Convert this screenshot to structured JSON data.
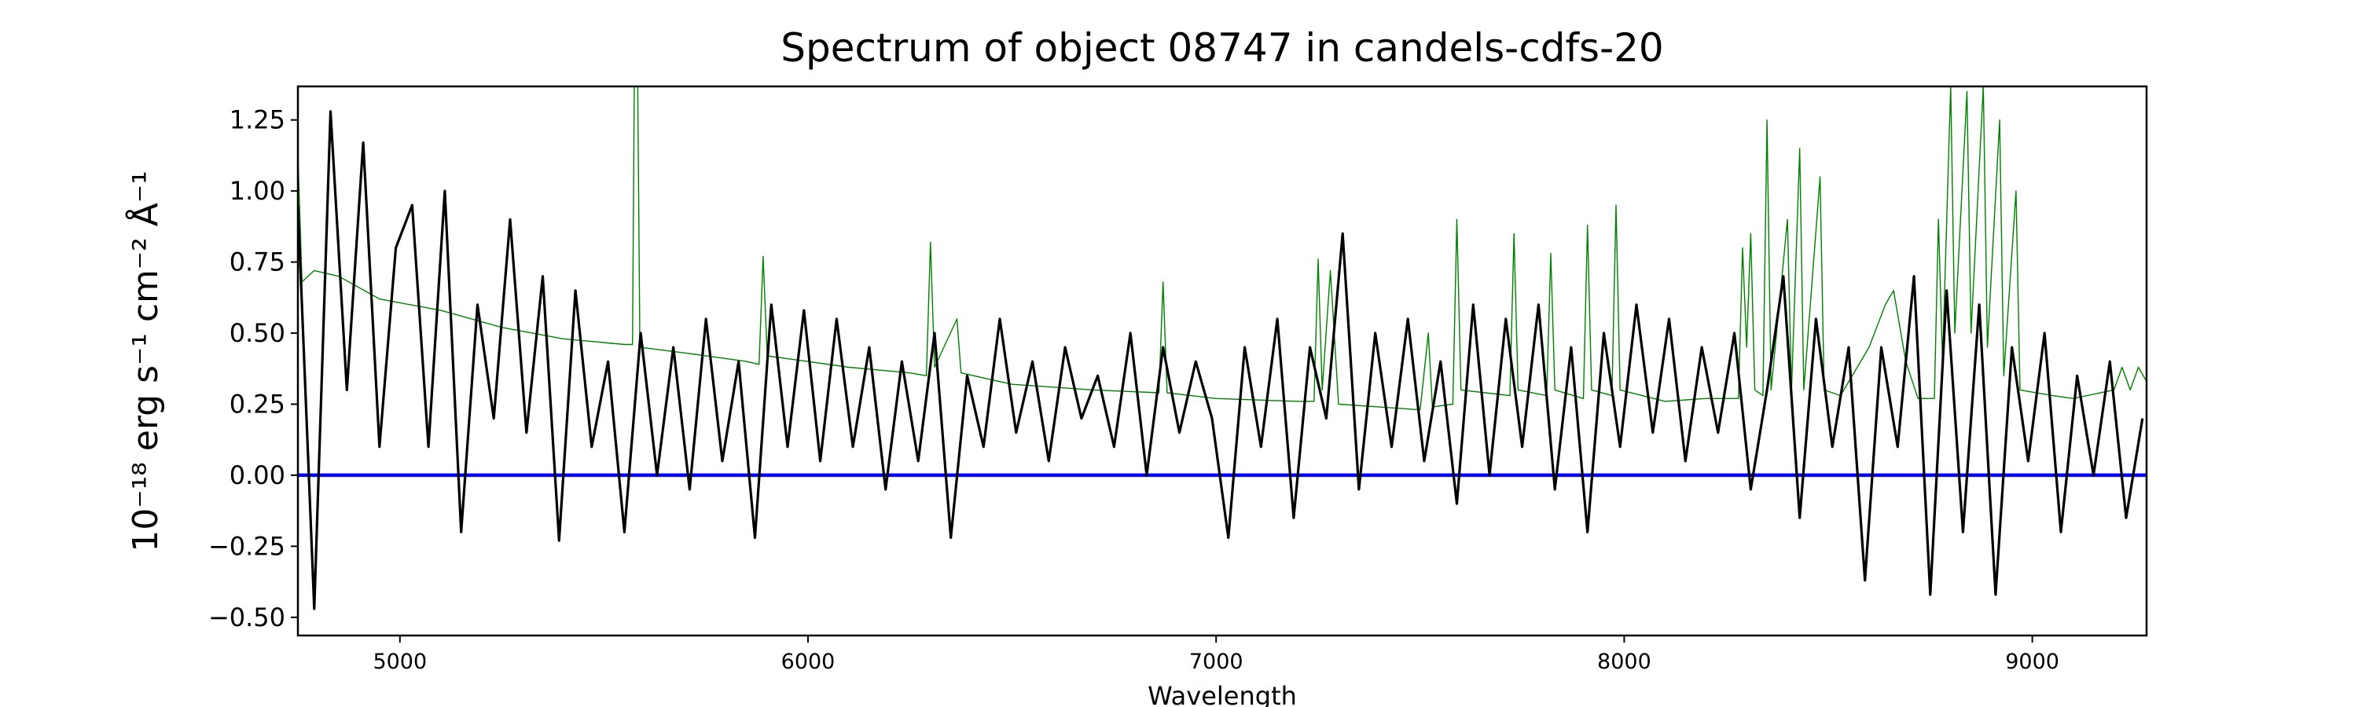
{
  "chart_data": {
    "type": "line",
    "title": "Spectrum of object 08747 in candels-cdfs-20",
    "xlabel": "Wavelength",
    "ylabel": "10⁻¹⁸ erg s⁻¹ cm⁻² Å⁻¹",
    "xlim": [
      4750,
      9280
    ],
    "ylim": [
      -0.564,
      1.368
    ],
    "xticks": [
      5000,
      6000,
      7000,
      8000,
      9000
    ],
    "xtick_labels": [
      "5000",
      "6000",
      "7000",
      "8000",
      "9000"
    ],
    "yticks": [
      -0.5,
      -0.25,
      0,
      0.25,
      0.5,
      0.75,
      1.0,
      1.25
    ],
    "ytick_labels": [
      "−0.50",
      "−0.25",
      "0.00",
      "0.25",
      "0.50",
      "0.75",
      "1.00",
      "1.25"
    ],
    "grid": false,
    "colors": {
      "flux": "#000000",
      "model": "#008000",
      "zero": "#0000ff"
    },
    "series": [
      {
        "color": "#008000",
        "x": [
          4750,
          4760,
          4790,
          4850,
          4950,
          5100,
          5250,
          5400,
          5550,
          5570,
          5575,
          5582,
          5588,
          5700,
          5850,
          5880,
          5890,
          5900,
          6000,
          6100,
          6250,
          6290,
          6300,
          6310,
          6365,
          6375,
          6500,
          6700,
          6860,
          6870,
          6880,
          7000,
          7200,
          7240,
          7250,
          7260,
          7280,
          7300,
          7400,
          7500,
          7520,
          7530,
          7580,
          7590,
          7600,
          7720,
          7730,
          7740,
          7810,
          7820,
          7830,
          7900,
          7910,
          7920,
          7970,
          7980,
          7990,
          8100,
          8200,
          8280,
          8290,
          8300,
          8310,
          8320,
          8340,
          8350,
          8360,
          8400,
          8410,
          8430,
          8440,
          8480,
          8490,
          8530,
          8600,
          8640,
          8660,
          8690,
          8720,
          8760,
          8770,
          8780,
          8800,
          8810,
          8840,
          8850,
          8880,
          8890,
          8920,
          8930,
          8960,
          8970,
          9050,
          9100,
          9200,
          9220,
          9240,
          9260,
          9280
        ],
        "y": [
          1.13,
          0.68,
          0.72,
          0.7,
          0.62,
          0.58,
          0.52,
          0.48,
          0.46,
          0.46,
          1.5,
          1.5,
          0.45,
          0.43,
          0.4,
          0.39,
          0.77,
          0.42,
          0.4,
          0.38,
          0.36,
          0.35,
          0.82,
          0.38,
          0.55,
          0.36,
          0.32,
          0.3,
          0.29,
          0.68,
          0.29,
          0.27,
          0.26,
          0.26,
          0.76,
          0.3,
          0.72,
          0.25,
          0.24,
          0.23,
          0.5,
          0.24,
          0.25,
          0.9,
          0.3,
          0.28,
          0.85,
          0.3,
          0.28,
          0.78,
          0.3,
          0.27,
          0.88,
          0.3,
          0.28,
          0.95,
          0.3,
          0.26,
          0.27,
          0.27,
          0.8,
          0.45,
          0.85,
          0.3,
          0.28,
          1.25,
          0.3,
          0.9,
          0.3,
          1.15,
          0.3,
          1.05,
          0.3,
          0.28,
          0.45,
          0.6,
          0.65,
          0.4,
          0.27,
          0.27,
          0.9,
          0.4,
          1.37,
          0.5,
          1.35,
          0.5,
          1.37,
          0.45,
          1.25,
          0.35,
          1.0,
          0.3,
          0.28,
          0.27,
          0.3,
          0.38,
          0.3,
          0.38,
          0.33
        ]
      },
      {
        "color": "#000000",
        "x": [
          4750,
          4790,
          4830,
          4870,
          4910,
          4950,
          4990,
          5030,
          5070,
          5110,
          5150,
          5190,
          5230,
          5270,
          5310,
          5350,
          5390,
          5430,
          5470,
          5510,
          5550,
          5590,
          5630,
          5670,
          5710,
          5750,
          5790,
          5830,
          5870,
          5910,
          5950,
          5990,
          6030,
          6070,
          6110,
          6150,
          6190,
          6230,
          6270,
          6310,
          6350,
          6390,
          6430,
          6470,
          6510,
          6550,
          6590,
          6630,
          6670,
          6710,
          6750,
          6790,
          6830,
          6870,
          6910,
          6950,
          6990,
          7030,
          7070,
          7110,
          7150,
          7190,
          7230,
          7270,
          7310,
          7350,
          7390,
          7430,
          7470,
          7510,
          7550,
          7590,
          7630,
          7670,
          7710,
          7750,
          7790,
          7830,
          7870,
          7910,
          7950,
          7990,
          8030,
          8070,
          8110,
          8150,
          8190,
          8230,
          8270,
          8310,
          8350,
          8390,
          8430,
          8470,
          8510,
          8550,
          8590,
          8630,
          8670,
          8710,
          8750,
          8790,
          8830,
          8870,
          8910,
          8950,
          8990,
          9030,
          9070,
          9110,
          9150,
          9190,
          9230,
          9270
        ],
        "y": [
          0.95,
          -0.47,
          1.28,
          0.3,
          1.17,
          0.1,
          0.8,
          0.95,
          0.1,
          1.0,
          -0.2,
          0.6,
          0.2,
          0.9,
          0.15,
          0.7,
          -0.23,
          0.65,
          0.1,
          0.4,
          -0.2,
          0.5,
          0.0,
          0.45,
          -0.05,
          0.55,
          0.05,
          0.4,
          -0.22,
          0.6,
          0.1,
          0.58,
          0.05,
          0.55,
          0.1,
          0.45,
          -0.05,
          0.4,
          0.05,
          0.5,
          -0.22,
          0.35,
          0.1,
          0.55,
          0.15,
          0.4,
          0.05,
          0.45,
          0.2,
          0.35,
          0.1,
          0.5,
          0.0,
          0.45,
          0.15,
          0.4,
          0.2,
          -0.22,
          0.45,
          0.1,
          0.55,
          -0.15,
          0.45,
          0.2,
          0.85,
          -0.05,
          0.5,
          0.1,
          0.55,
          0.05,
          0.4,
          -0.1,
          0.6,
          0.0,
          0.55,
          0.1,
          0.6,
          -0.05,
          0.45,
          -0.2,
          0.5,
          0.1,
          0.6,
          0.15,
          0.55,
          0.05,
          0.45,
          0.15,
          0.5,
          -0.05,
          0.3,
          0.7,
          -0.15,
          0.55,
          0.1,
          0.45,
          -0.37,
          0.45,
          0.1,
          0.7,
          -0.42,
          0.65,
          -0.2,
          0.6,
          -0.42,
          0.45,
          0.05,
          0.5,
          -0.2,
          0.35,
          0.0,
          0.4,
          -0.15,
          0.2
        ]
      },
      {
        "color": "#0000ff",
        "x": [
          4750,
          9280
        ],
        "y": [
          0,
          0
        ]
      }
    ]
  }
}
